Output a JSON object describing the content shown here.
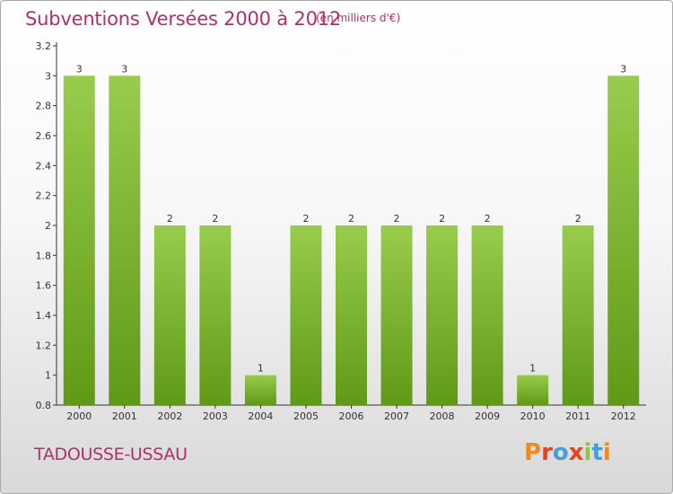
{
  "header": {
    "title": "Subventions Versées 2000 à 2012",
    "subtitle": "(en milliers d'€)"
  },
  "footer": {
    "commune": "TADOUSSE-USSAU",
    "logo_text": "Proxiti"
  },
  "colors": {
    "title": "#b0306a",
    "bar_top": "#99cc4c",
    "bar_bottom": "#5f9a17",
    "logo_letters": [
      "#f08a1c",
      "#e8431f",
      "#46a0d8",
      "#e8431f",
      "#8dc63f",
      "#46a0d8",
      "#f08a1c"
    ]
  },
  "chart_data": {
    "type": "bar",
    "categories": [
      "2000",
      "2001",
      "2002",
      "2003",
      "2004",
      "2005",
      "2006",
      "2007",
      "2008",
      "2009",
      "2010",
      "2011",
      "2012"
    ],
    "values": [
      3,
      3,
      2,
      2,
      1,
      2,
      2,
      2,
      2,
      2,
      1,
      2,
      3
    ],
    "data_labels": [
      "3",
      "3",
      "2",
      "2",
      "1",
      "2",
      "2",
      "2",
      "2",
      "2",
      "1",
      "2",
      "3"
    ],
    "ylim": [
      0.8,
      3.2
    ],
    "yticks": [
      0.8,
      1,
      1.2,
      1.4,
      1.6,
      1.8,
      2,
      2.2,
      2.4,
      2.6,
      2.8,
      3,
      3.2
    ],
    "ytick_labels": [
      "0.8",
      "1",
      "1.2",
      "1.4",
      "1.6",
      "1.8",
      "2",
      "2.2",
      "2.4",
      "2.6",
      "2.8",
      "3",
      "3.2"
    ],
    "grid": false,
    "xlabel": "",
    "ylabel": ""
  }
}
